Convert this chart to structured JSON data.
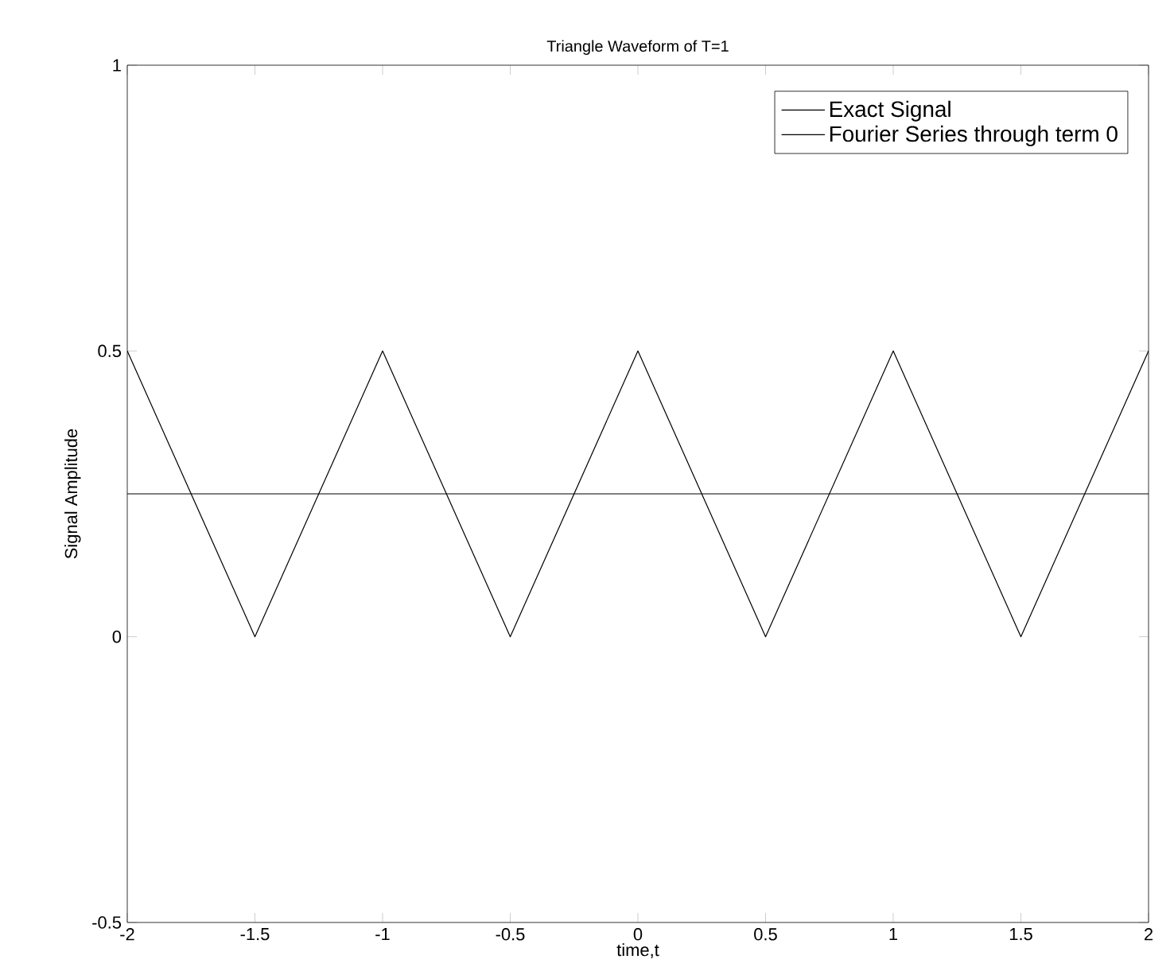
{
  "chart_data": {
    "type": "line",
    "title": "Triangle Waveform of T=1",
    "xlabel": "time,t",
    "ylabel": "Signal Amplitude",
    "series": [
      {
        "name": "Exact Signal",
        "color": "#000000",
        "x": [
          -2,
          -1.5,
          -1,
          -0.5,
          0,
          0.5,
          1,
          1.5,
          2
        ],
        "values": [
          0.5,
          0,
          0.5,
          0,
          0.5,
          0,
          0.5,
          0,
          0.5
        ]
      },
      {
        "name": "Fourier Series through term 0",
        "color": "#000000",
        "x": [
          -2,
          2
        ],
        "values": [
          0.25,
          0.25
        ]
      }
    ],
    "xlim": [
      -2,
      2
    ],
    "ylim": [
      -0.5,
      1
    ],
    "xticks": [
      -2,
      -1.5,
      -1,
      -0.5,
      0,
      0.5,
      1,
      1.5,
      2
    ],
    "yticks": [
      -0.5,
      0,
      0.5,
      1
    ],
    "grid": false,
    "legend": "top right",
    "marker": "none",
    "line_style": "solid"
  }
}
